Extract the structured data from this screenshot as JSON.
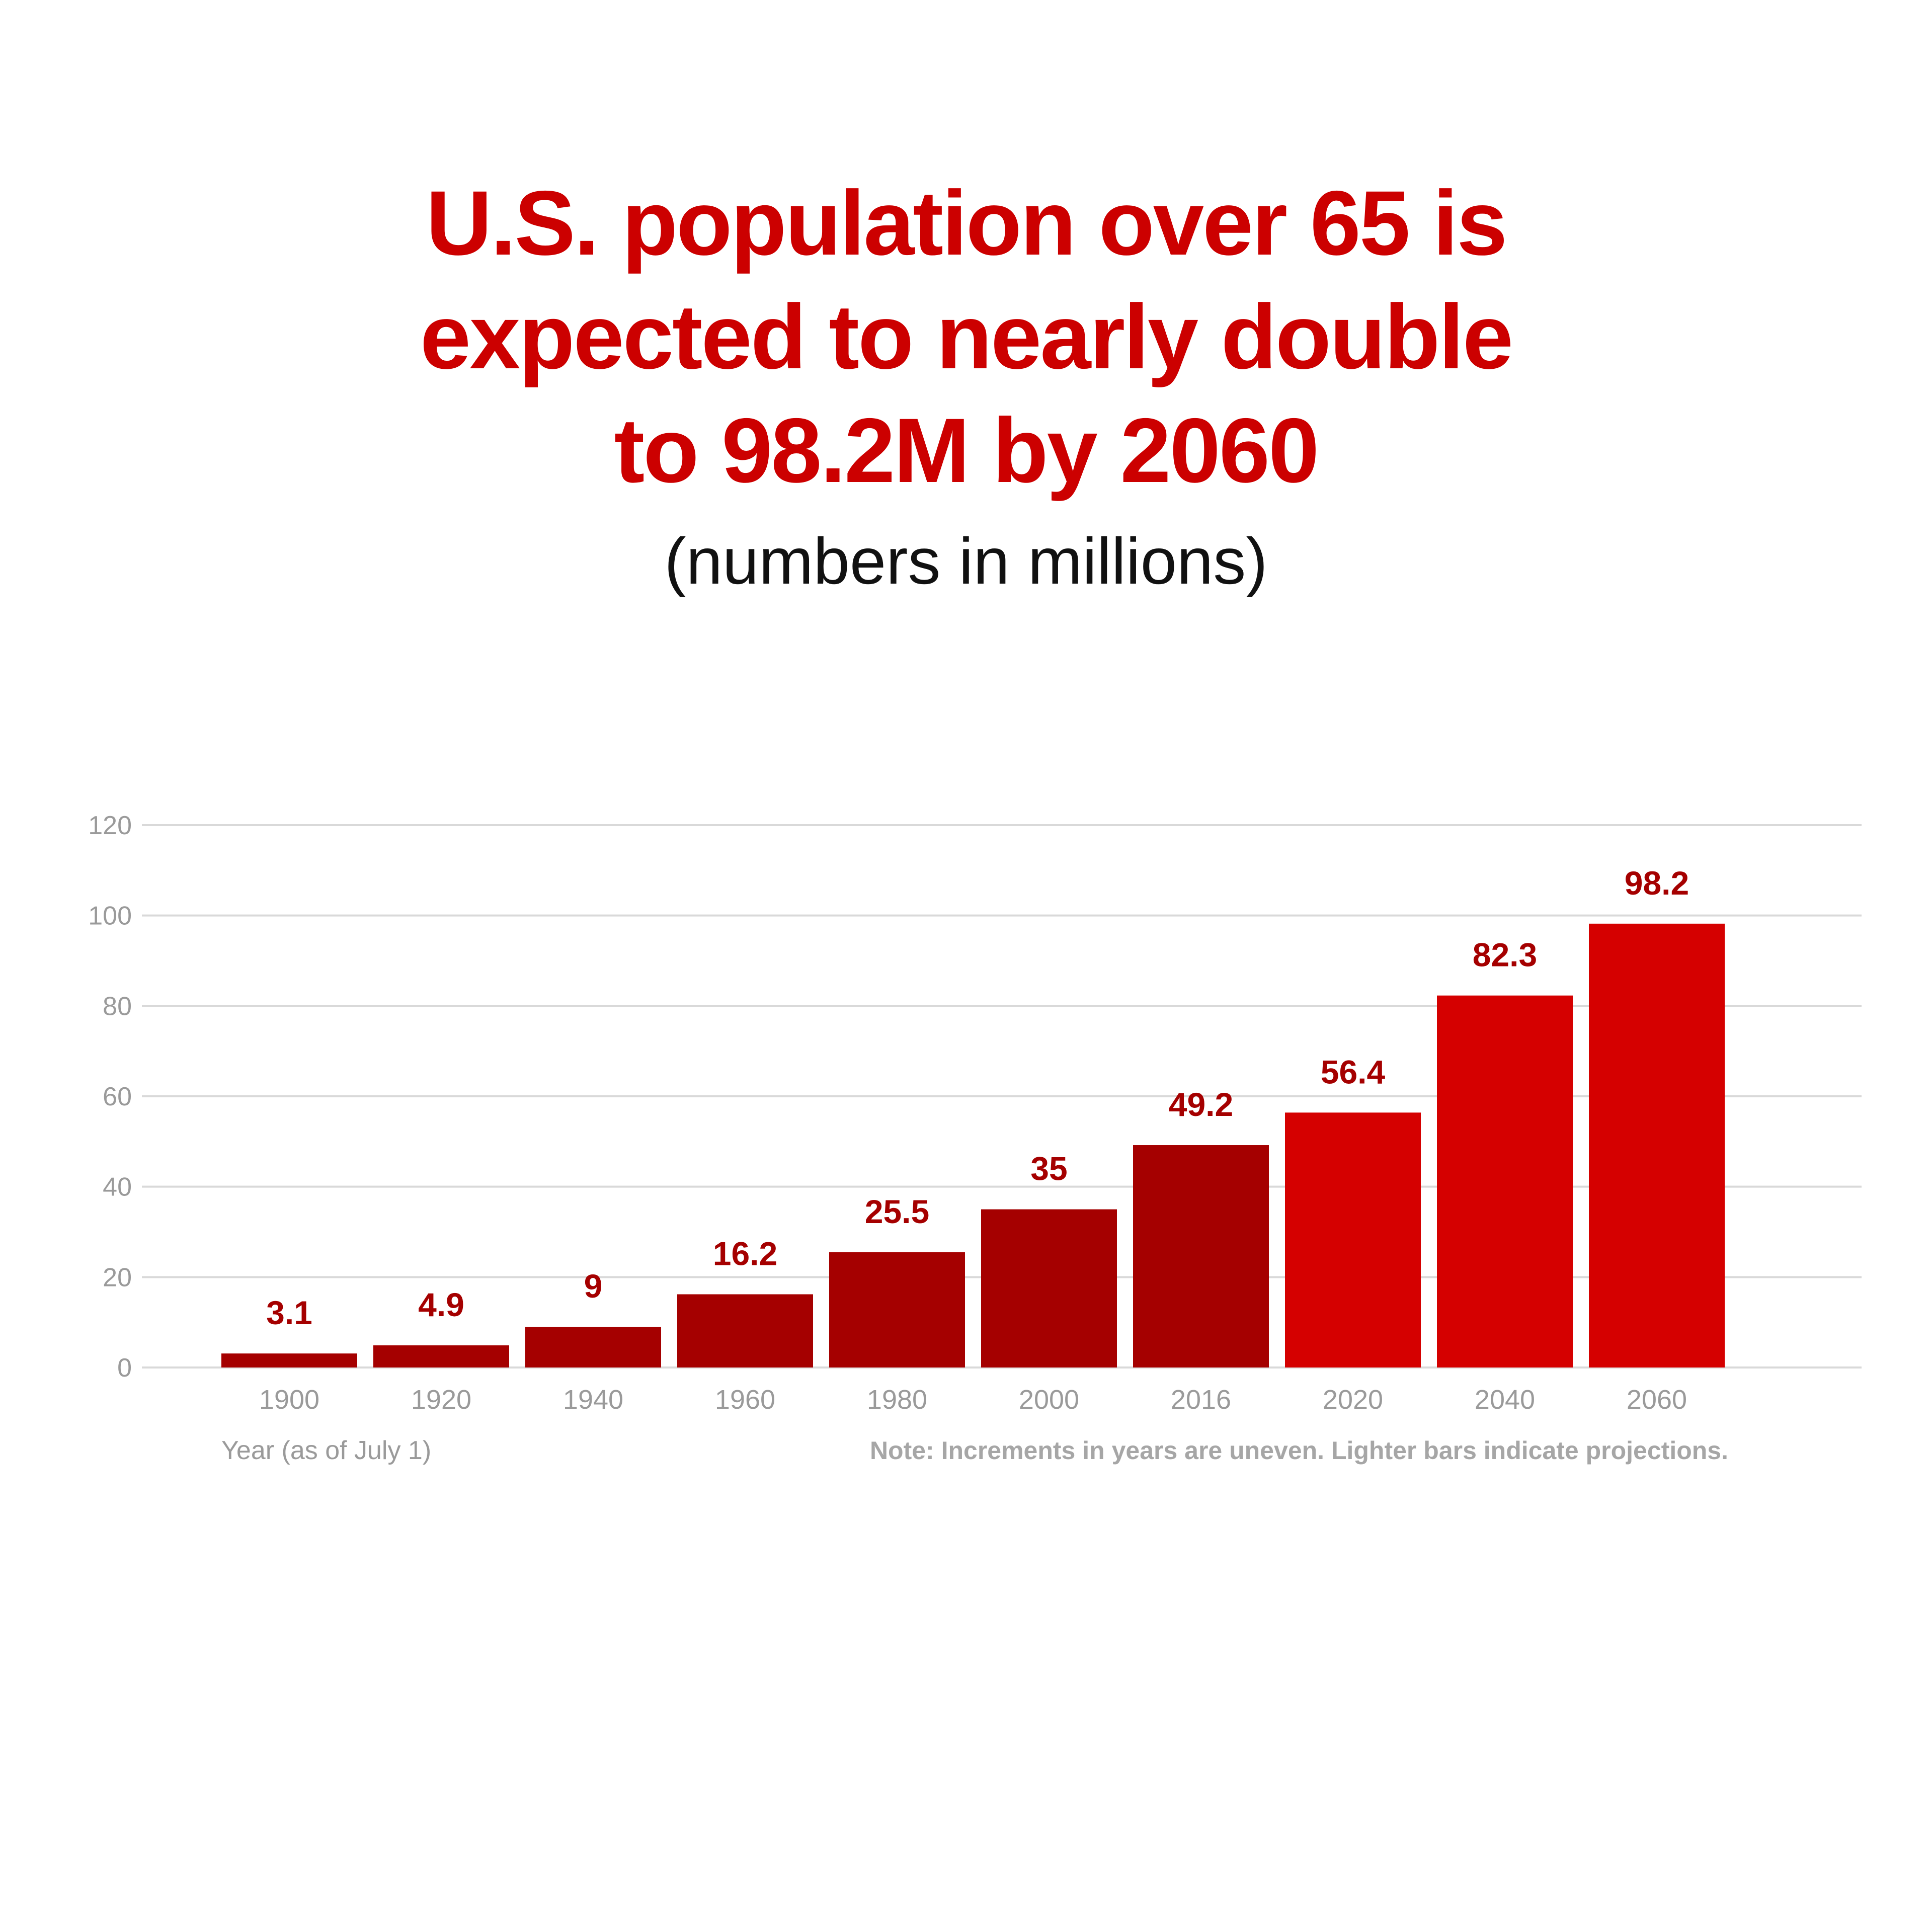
{
  "header": {
    "title_lines": [
      "U.S. population over 65 is",
      "expected to nearly double",
      "to 98.2M by 2060"
    ],
    "subtitle": "(numbers in millions)"
  },
  "colors": {
    "title": "#cc0000",
    "historical_bar": "#a50000",
    "projection_bar": "#d50000",
    "data_label": "#a50000",
    "axis_text": "#9a9a9a",
    "gridline": "#d9d9d9",
    "note_text": "#a6a6a6"
  },
  "chart_data": {
    "type": "bar",
    "title": "U.S. population over 65 is expected to nearly double to 98.2M by 2060",
    "subtitle": "(numbers in millions)",
    "categories": [
      "1900",
      "1920",
      "1940",
      "1960",
      "1980",
      "2000",
      "2016",
      "2020",
      "2040",
      "2060"
    ],
    "values": [
      3.1,
      4.9,
      9,
      16.2,
      25.5,
      35,
      49.2,
      56.4,
      82.3,
      98.2
    ],
    "value_labels": [
      "3.1",
      "4.9",
      "9",
      "16.2",
      "25.5",
      "35",
      "49.2",
      "56.4",
      "82.3",
      "98.2"
    ],
    "projection": [
      false,
      false,
      false,
      false,
      false,
      false,
      false,
      true,
      true,
      true
    ],
    "xlabel": "Year (as of July 1)",
    "ylabel": "",
    "ylim": [
      0,
      120
    ],
    "yticks": [
      0,
      20,
      40,
      60,
      80,
      100,
      120
    ],
    "grid": true,
    "note": "Note: Increments in years are uneven. Lighter bars indicate projections."
  }
}
